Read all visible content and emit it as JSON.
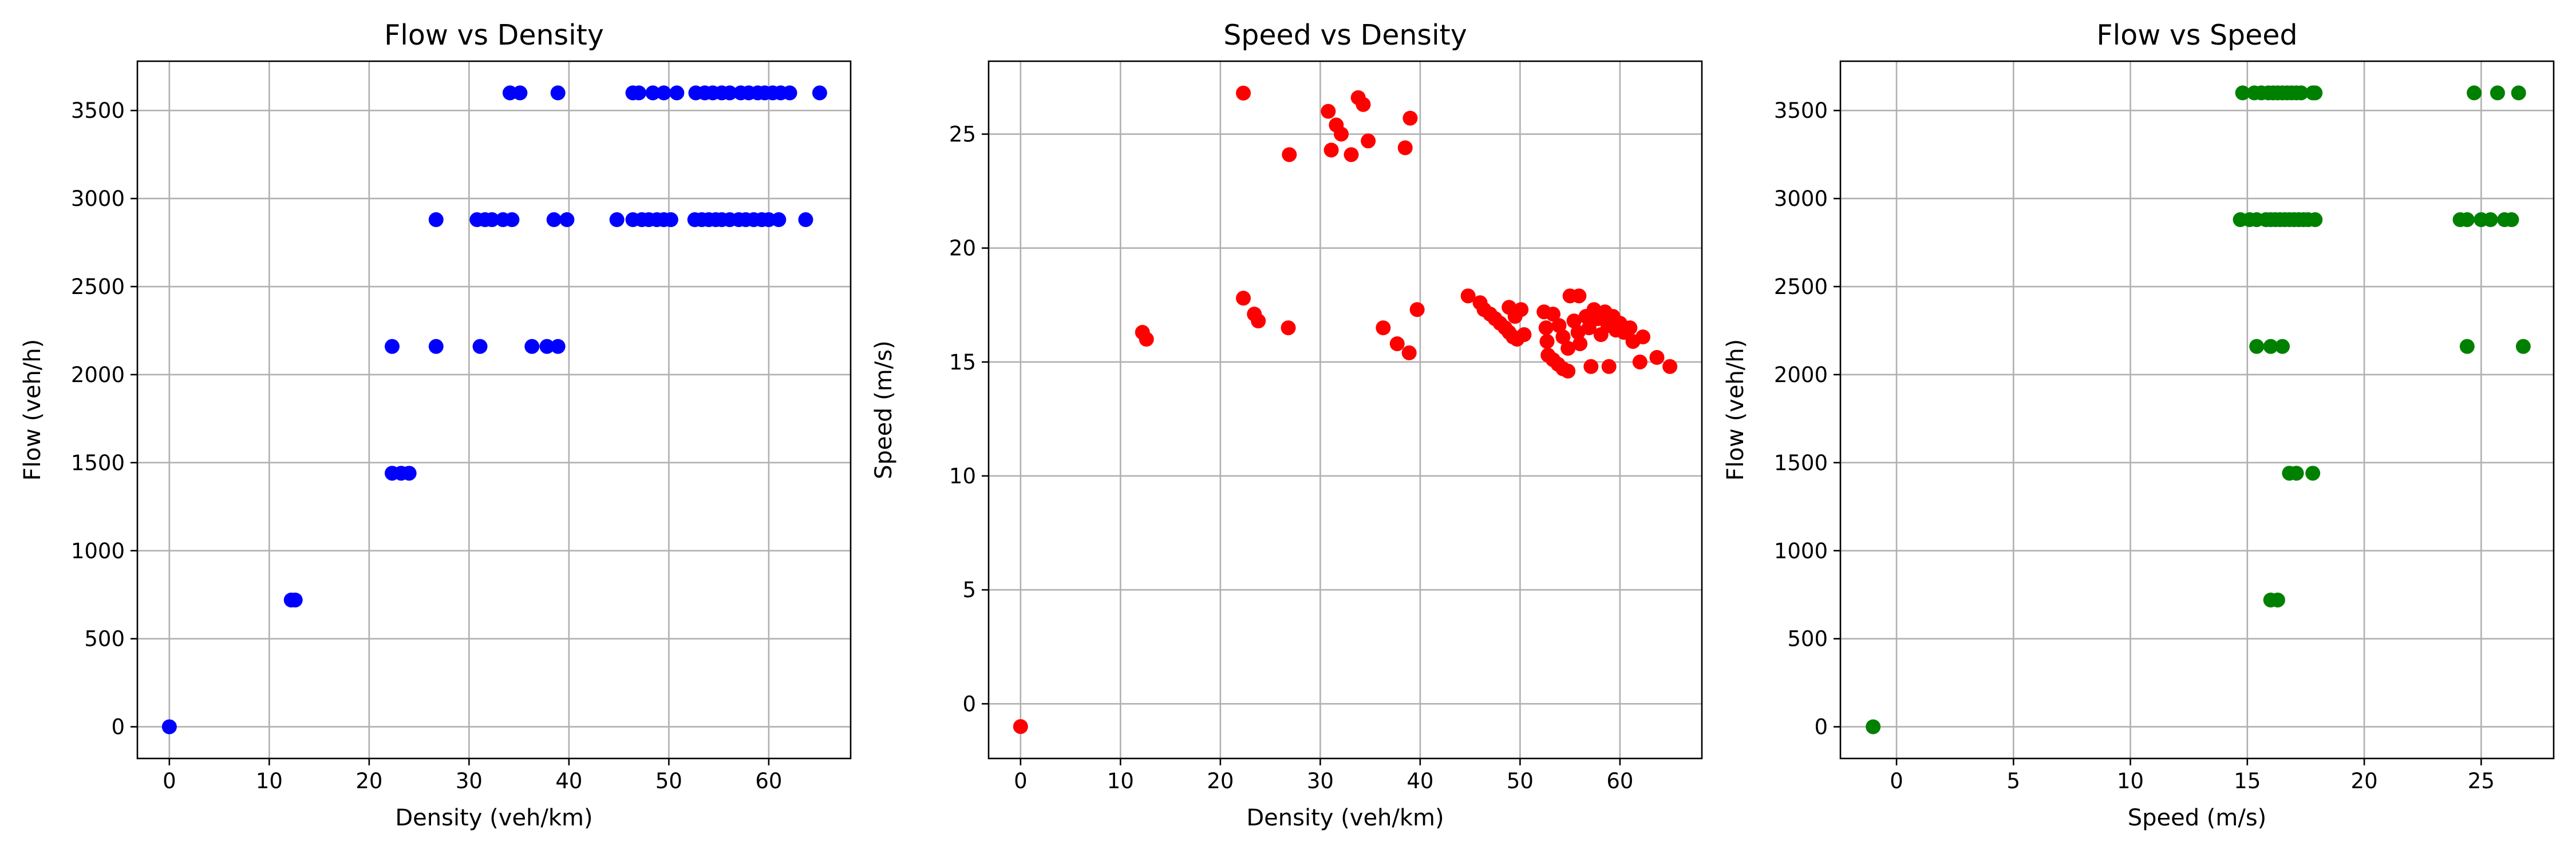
{
  "chart_data": [
    {
      "type": "scatter",
      "title": "Flow vs Density",
      "xlabel": "Density (veh/km)",
      "ylabel": "Flow (veh/h)",
      "xlim": [
        -3.2,
        68.2
      ],
      "ylim": [
        -180,
        3780
      ],
      "xticks": [
        0,
        10,
        20,
        30,
        40,
        50,
        60
      ],
      "yticks": [
        0,
        500,
        1000,
        1500,
        2000,
        2500,
        3000,
        3500
      ],
      "grid": true,
      "color": "#0000ff",
      "points": [
        [
          0,
          0
        ],
        [
          12.2,
          720
        ],
        [
          12.6,
          720
        ],
        [
          22.3,
          1440
        ],
        [
          23.2,
          1440
        ],
        [
          24.0,
          1440
        ],
        [
          22.3,
          2160
        ],
        [
          26.7,
          2160
        ],
        [
          31.1,
          2160
        ],
        [
          36.3,
          2160
        ],
        [
          37.8,
          2160
        ],
        [
          38.9,
          2160
        ],
        [
          26.7,
          2880
        ],
        [
          30.8,
          2880
        ],
        [
          31.6,
          2880
        ],
        [
          32.3,
          2880
        ],
        [
          33.4,
          2880
        ],
        [
          34.3,
          2880
        ],
        [
          38.5,
          2880
        ],
        [
          39.8,
          2880
        ],
        [
          44.8,
          2880
        ],
        [
          46.4,
          2880
        ],
        [
          47.3,
          2880
        ],
        [
          48.0,
          2880
        ],
        [
          48.8,
          2880
        ],
        [
          49.5,
          2880
        ],
        [
          50.2,
          2880
        ],
        [
          52.6,
          2880
        ],
        [
          53.3,
          2880
        ],
        [
          54.0,
          2880
        ],
        [
          54.7,
          2880
        ],
        [
          55.3,
          2880
        ],
        [
          56.1,
          2880
        ],
        [
          57.0,
          2880
        ],
        [
          57.7,
          2880
        ],
        [
          58.5,
          2880
        ],
        [
          59.3,
          2880
        ],
        [
          60.0,
          2880
        ],
        [
          61.0,
          2880
        ],
        [
          63.7,
          2880
        ],
        [
          34.1,
          3600
        ],
        [
          35.1,
          3600
        ],
        [
          38.9,
          3600
        ],
        [
          46.4,
          3600
        ],
        [
          47.0,
          3600
        ],
        [
          48.4,
          3600
        ],
        [
          49.5,
          3600
        ],
        [
          50.8,
          3600
        ],
        [
          52.7,
          3600
        ],
        [
          53.6,
          3600
        ],
        [
          54.4,
          3600
        ],
        [
          55.3,
          3600
        ],
        [
          56.1,
          3600
        ],
        [
          57.2,
          3600
        ],
        [
          58.0,
          3600
        ],
        [
          58.9,
          3600
        ],
        [
          59.6,
          3600
        ],
        [
          60.4,
          3600
        ],
        [
          61.2,
          3600
        ],
        [
          62.1,
          3600
        ],
        [
          65.1,
          3600
        ]
      ]
    },
    {
      "type": "scatter",
      "title": "Speed vs Density",
      "xlabel": "Density (veh/km)",
      "ylabel": "Speed (m/s)",
      "xlim": [
        -3.2,
        68.2
      ],
      "ylim": [
        -2.4,
        28.2
      ],
      "xticks": [
        0,
        10,
        20,
        30,
        40,
        50,
        60
      ],
      "yticks": [
        0,
        5,
        10,
        15,
        20,
        25
      ],
      "grid": true,
      "color": "#ff0000",
      "points": [
        [
          0,
          -1.0
        ],
        [
          12.2,
          16.3
        ],
        [
          12.6,
          16.0
        ],
        [
          22.3,
          26.8
        ],
        [
          22.3,
          17.8
        ],
        [
          23.4,
          17.1
        ],
        [
          23.8,
          16.8
        ],
        [
          26.8,
          16.5
        ],
        [
          26.9,
          24.1
        ],
        [
          30.8,
          26.0
        ],
        [
          31.1,
          24.3
        ],
        [
          31.6,
          25.4
        ],
        [
          32.1,
          25.0
        ],
        [
          33.1,
          24.1
        ],
        [
          33.8,
          26.6
        ],
        [
          34.3,
          26.3
        ],
        [
          34.8,
          24.7
        ],
        [
          36.3,
          16.5
        ],
        [
          37.7,
          15.8
        ],
        [
          38.5,
          24.4
        ],
        [
          38.9,
          15.4
        ],
        [
          39.0,
          25.7
        ],
        [
          39.7,
          17.3
        ],
        [
          44.8,
          17.9
        ],
        [
          46.0,
          17.6
        ],
        [
          46.4,
          17.3
        ],
        [
          47.0,
          17.1
        ],
        [
          47.5,
          16.9
        ],
        [
          48.0,
          16.7
        ],
        [
          48.5,
          16.5
        ],
        [
          48.9,
          16.3
        ],
        [
          49.3,
          16.1
        ],
        [
          49.7,
          16.0
        ],
        [
          48.9,
          17.4
        ],
        [
          49.5,
          17.0
        ],
        [
          50.1,
          17.3
        ],
        [
          50.4,
          16.2
        ],
        [
          52.4,
          17.2
        ],
        [
          52.6,
          16.5
        ],
        [
          52.7,
          15.9
        ],
        [
          52.8,
          15.3
        ],
        [
          53.3,
          15.1
        ],
        [
          53.8,
          14.9
        ],
        [
          54.3,
          14.7
        ],
        [
          54.8,
          14.6
        ],
        [
          53.3,
          17.1
        ],
        [
          53.9,
          16.6
        ],
        [
          54.3,
          16.1
        ],
        [
          54.8,
          15.6
        ],
        [
          55.0,
          17.9
        ],
        [
          55.4,
          16.8
        ],
        [
          55.8,
          16.3
        ],
        [
          56.0,
          15.8
        ],
        [
          55.9,
          17.9
        ],
        [
          56.6,
          17.0
        ],
        [
          56.9,
          16.5
        ],
        [
          57.1,
          14.8
        ],
        [
          57.4,
          17.3
        ],
        [
          57.8,
          16.9
        ],
        [
          58.1,
          16.2
        ],
        [
          58.5,
          17.2
        ],
        [
          58.8,
          16.6
        ],
        [
          58.9,
          14.8
        ],
        [
          59.3,
          17.0
        ],
        [
          59.6,
          16.4
        ],
        [
          60.0,
          16.7
        ],
        [
          60.4,
          16.3
        ],
        [
          61.0,
          16.5
        ],
        [
          61.3,
          15.9
        ],
        [
          62.0,
          15.0
        ],
        [
          62.3,
          16.1
        ],
        [
          63.7,
          15.2
        ],
        [
          65.0,
          14.8
        ]
      ]
    },
    {
      "type": "scatter",
      "title": "Flow vs Speed",
      "xlabel": "Speed (m/s)",
      "ylabel": "Flow (veh/h)",
      "xlim": [
        -2.4,
        28.1
      ],
      "ylim": [
        -180,
        3780
      ],
      "xticks": [
        0,
        5,
        10,
        15,
        20,
        25
      ],
      "yticks": [
        0,
        500,
        1000,
        1500,
        2000,
        2500,
        3000,
        3500
      ],
      "grid": true,
      "color": "#008000",
      "points": [
        [
          -1.0,
          0
        ],
        [
          16.0,
          720
        ],
        [
          16.3,
          720
        ],
        [
          16.8,
          1440
        ],
        [
          17.1,
          1440
        ],
        [
          17.8,
          1440
        ],
        [
          15.4,
          2160
        ],
        [
          16.0,
          2160
        ],
        [
          16.5,
          2160
        ],
        [
          24.4,
          2160
        ],
        [
          26.8,
          2160
        ],
        [
          14.7,
          2880
        ],
        [
          15.1,
          2880
        ],
        [
          15.4,
          2880
        ],
        [
          15.8,
          2880
        ],
        [
          16.0,
          2880
        ],
        [
          16.2,
          2880
        ],
        [
          16.4,
          2880
        ],
        [
          16.6,
          2880
        ],
        [
          16.8,
          2880
        ],
        [
          17.0,
          2880
        ],
        [
          17.2,
          2880
        ],
        [
          17.4,
          2880
        ],
        [
          17.6,
          2880
        ],
        [
          17.9,
          2880
        ],
        [
          24.1,
          2880
        ],
        [
          24.4,
          2880
        ],
        [
          25.0,
          2880
        ],
        [
          25.4,
          2880
        ],
        [
          26.0,
          2880
        ],
        [
          26.3,
          2880
        ],
        [
          14.8,
          3600
        ],
        [
          15.3,
          3600
        ],
        [
          15.6,
          3600
        ],
        [
          15.9,
          3600
        ],
        [
          16.1,
          3600
        ],
        [
          16.3,
          3600
        ],
        [
          16.5,
          3600
        ],
        [
          16.7,
          3600
        ],
        [
          16.9,
          3600
        ],
        [
          17.1,
          3600
        ],
        [
          17.3,
          3600
        ],
        [
          17.8,
          3600
        ],
        [
          17.9,
          3600
        ],
        [
          24.7,
          3600
        ],
        [
          25.7,
          3600
        ],
        [
          26.6,
          3600
        ]
      ]
    }
  ]
}
